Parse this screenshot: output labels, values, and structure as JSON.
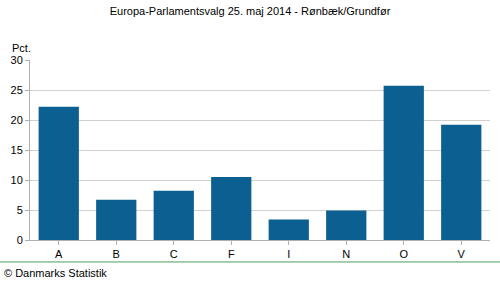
{
  "chart_data": {
    "type": "bar",
    "title": "Europa-Parlamentsvalg 25. maj 2014 - Rønbæk/Grundfør",
    "ylabel": "Pct.",
    "categories": [
      "A",
      "B",
      "C",
      "F",
      "I",
      "N",
      "O",
      "V"
    ],
    "values": [
      22.2,
      6.7,
      8.2,
      10.5,
      3.4,
      4.9,
      25.7,
      19.2
    ],
    "color": "#0b5f91",
    "ylim": [
      0,
      30
    ],
    "yticks": [
      0,
      5,
      10,
      15,
      20,
      25,
      30
    ],
    "grid": true,
    "annotations": [
      "© Danmarks Statistik"
    ]
  }
}
